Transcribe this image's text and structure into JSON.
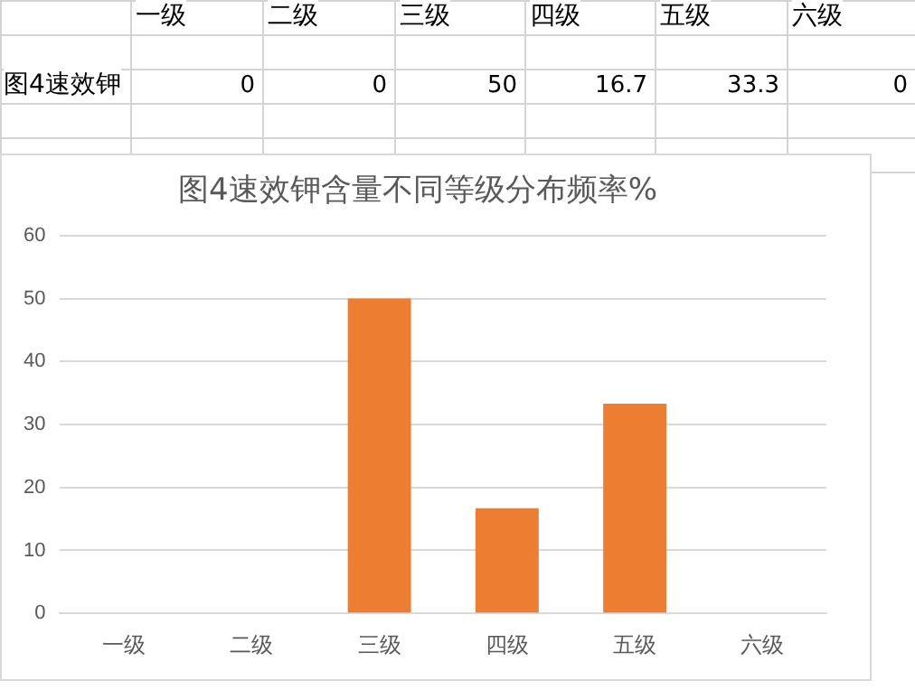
{
  "chart_data": [
    {
      "type": "other",
      "categories": [
        "一级",
        "二级",
        "三级",
        "四级",
        "五级",
        "六级"
      ],
      "annotations": [
        "图4速效钾",
        "0",
        "0",
        "50",
        "16.7",
        "33.3",
        "0"
      ]
    },
    {
      "type": "bar",
      "title": "图4速效钾含量不同等级分布频率%",
      "categories": [
        "一级",
        "二级",
        "三级",
        "四级",
        "五级",
        "六级"
      ],
      "values": [
        0,
        0,
        50,
        16.7,
        33.3,
        0
      ],
      "color": "#ed7d31",
      "ylim": [
        0,
        60
      ],
      "yticks": [
        0,
        10,
        20,
        30,
        40,
        50,
        60
      ],
      "grid": "y",
      "legend": false
    }
  ]
}
